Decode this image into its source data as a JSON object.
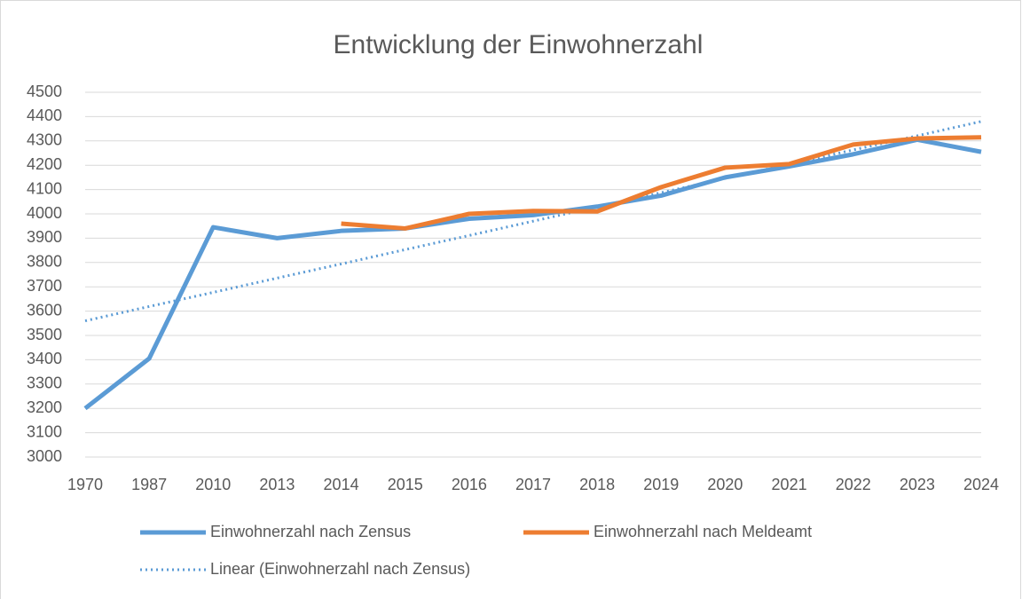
{
  "chart_data": {
    "type": "line",
    "title": "Entwicklung der Einwohnerzahl",
    "categories": [
      "1970",
      "1987",
      "2010",
      "2013",
      "2014",
      "2015",
      "2016",
      "2017",
      "2018",
      "2019",
      "2020",
      "2021",
      "2022",
      "2023",
      "2024"
    ],
    "series": [
      {
        "name": "Einwohnerzahl nach Zensus",
        "color": "#5b9bd5",
        "style": "solid",
        "values": [
          3200,
          3405,
          3945,
          3900,
          3930,
          3940,
          3980,
          3995,
          4030,
          4075,
          4150,
          4195,
          4245,
          4305,
          4255
        ]
      },
      {
        "name": "Einwohnerzahl nach Meldeamt",
        "color": "#ed7d31",
        "style": "solid",
        "values": [
          null,
          null,
          null,
          null,
          3960,
          3940,
          4000,
          4012,
          4010,
          4110,
          4190,
          4205,
          4285,
          4310,
          4315
        ]
      },
      {
        "name": "Linear (Einwohnerzahl nach Zensus)",
        "color": "#5b9bd5",
        "style": "dotted",
        "values": [
          3560,
          3619,
          3677,
          3736,
          3794,
          3853,
          3911,
          3970,
          4029,
          4087,
          4146,
          4204,
          4263,
          4321,
          4380
        ]
      }
    ],
    "ylim": [
      3000,
      4500
    ],
    "yticks": [
      3000,
      3100,
      3200,
      3300,
      3400,
      3500,
      3600,
      3700,
      3800,
      3900,
      4000,
      4100,
      4200,
      4300,
      4400,
      4500
    ],
    "grid": true,
    "legend": "bottom"
  }
}
